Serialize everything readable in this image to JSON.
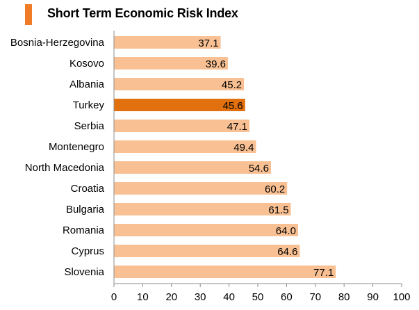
{
  "title": "Short Term Economic Risk Index",
  "colors": {
    "accent": "#f07c28",
    "bar": "#f9c193",
    "bar_highlight": "#e3700e",
    "axis": "#8c8c8c",
    "text": "#000000"
  },
  "chart_data": {
    "type": "bar",
    "orientation": "horizontal",
    "title": "Short Term Economic Risk Index",
    "categories": [
      "Bosnia-Herzegovina",
      "Kosovo",
      "Albania",
      "Turkey",
      "Serbia",
      "Montenegro",
      "North Macedonia",
      "Croatia",
      "Bulgaria",
      "Romania",
      "Cyprus",
      "Slovenia"
    ],
    "values": [
      37.1,
      39.6,
      45.2,
      45.6,
      47.1,
      49.4,
      54.6,
      60.2,
      61.5,
      64.0,
      64.6,
      77.1
    ],
    "value_labels": [
      "37.1",
      "39.6",
      "45.2",
      "45.6",
      "47.1",
      "49.4",
      "54.6",
      "60.2",
      "61.5",
      "64.0",
      "64.6",
      "77.1"
    ],
    "highlight": "Turkey",
    "xlim": [
      0,
      100
    ],
    "xticks": [
      "0",
      "10",
      "20",
      "30",
      "40",
      "50",
      "60",
      "70",
      "80",
      "90",
      "100"
    ],
    "xlabel": "",
    "ylabel": "",
    "grid": false,
    "legend": false
  }
}
